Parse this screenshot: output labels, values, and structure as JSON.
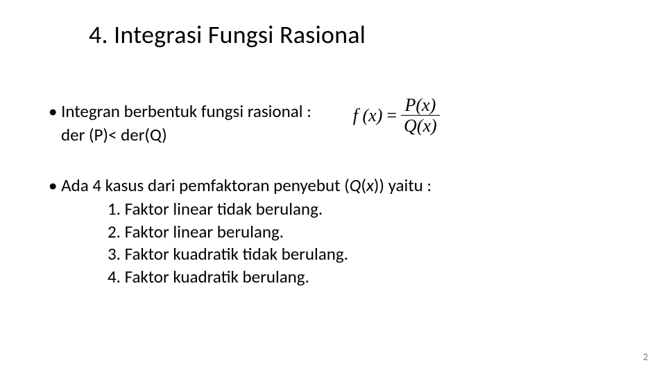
{
  "title": "4. Integrasi Fungsi Rasional",
  "bullet1": {
    "line1": "Integran berbentuk fungsi rasional :",
    "line2": "der (P)< der(Q)"
  },
  "formula": {
    "lhs": "f (x)",
    "eq": "=",
    "num": "P(x)",
    "den": "Q(x)"
  },
  "bullet2": {
    "lead_prefix": "Ada 4 kasus dari pemfaktoran penyebut (",
    "q": "Q",
    "paren_open": "(",
    "x": "x",
    "paren_close": ")) yaitu :"
  },
  "list": {
    "i1": "1. Faktor linear tidak berulang.",
    "i2": "2. Faktor linear berulang.",
    "i3": "3. Faktor kuadratik tidak berulang.",
    "i4": "4. Faktor kuadratik berulang."
  },
  "page_number": "2"
}
